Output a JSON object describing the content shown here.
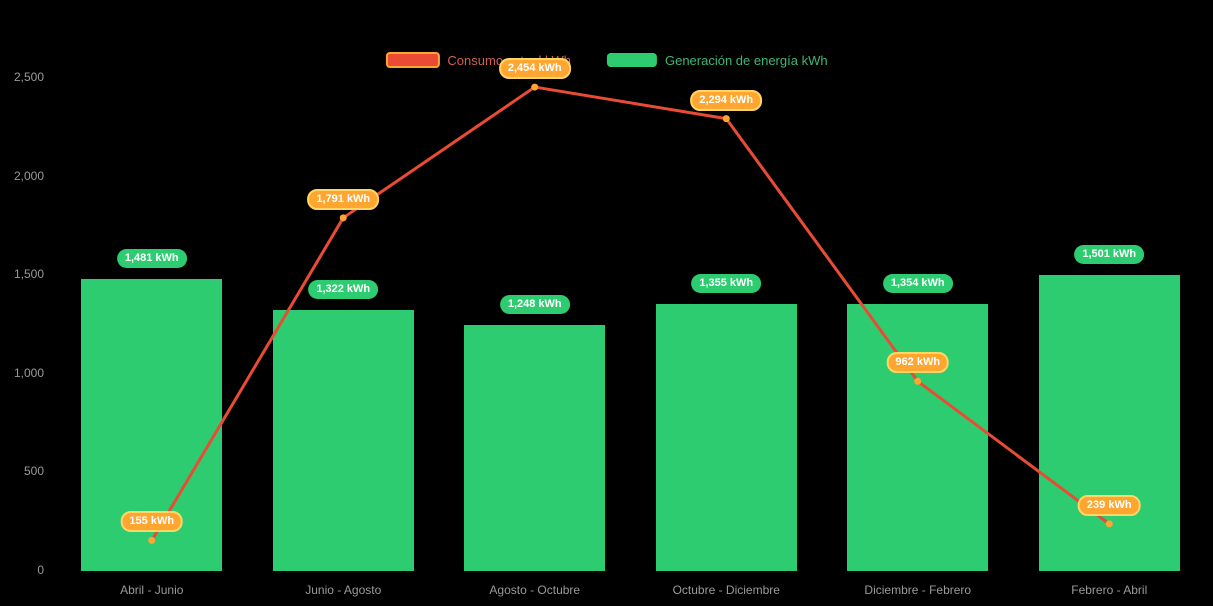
{
  "chart_data": {
    "type": "bar+line",
    "title": "",
    "categories": [
      "Abril - Junio",
      "Junio - Agosto",
      "Agosto - Octubre",
      "Octubre - Diciembre",
      "Diciembre - Febrero",
      "Febrero - Abril"
    ],
    "series": [
      {
        "name": "Consumo actual kWh",
        "type": "line",
        "values": [
          155,
          1791,
          2454,
          2294,
          962,
          239
        ],
        "labels": [
          "155 kWh",
          "1,791 kWh",
          "2,454 kWh",
          "2,294 kWh",
          "962 kWh",
          "239 kWh"
        ],
        "color": "#ea4b35",
        "point_color": "#ffa631",
        "label_bg": "#ffa631",
        "label_border": "#ffd666",
        "label_text_color": "#ffffff",
        "legend_text_color": "#d0604e"
      },
      {
        "name": "Generación de energía kWh",
        "type": "bar",
        "values": [
          1481,
          1322,
          1248,
          1355,
          1354,
          1501
        ],
        "labels": [
          "1,481 kWh",
          "1,322 kWh",
          "1,248 kWh",
          "1,355 kWh",
          "1,354 kWh",
          "1,501 kWh"
        ],
        "color": "#2dcc70",
        "label_bg": "#2dcc70",
        "label_text_color": "#ffffff",
        "legend_text_color": "#3cb878"
      }
    ],
    "y_axis": {
      "min": 0,
      "max": 2500,
      "ticks": [
        0,
        500,
        1000,
        1500,
        2000,
        2500
      ],
      "tick_labels": [
        "0",
        "500",
        "1,000",
        "1,500",
        "2,000",
        "2,500"
      ]
    },
    "xlabel": "",
    "ylabel": "",
    "grid": false,
    "legend_position": "top-center",
    "background": "#000000",
    "axis_text_color": "#9a9a9a"
  }
}
